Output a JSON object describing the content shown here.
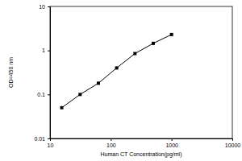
{
  "chart_data": {
    "type": "line",
    "x_label": "Human CT Concentration(pg/ml)",
    "y_label": "OD=450 nm",
    "x": [
      15.6,
      31.25,
      62.5,
      125,
      250,
      500,
      1000
    ],
    "values": [
      0.05,
      0.1,
      0.18,
      0.4,
      0.85,
      1.45,
      2.3
    ],
    "color": "#000000",
    "marker": "square",
    "line_style": "solid",
    "log": true,
    "grid": false,
    "xlim": [
      10,
      10000
    ],
    "xticks": [
      10,
      100,
      1000,
      10000
    ],
    "ylim": [
      0.01,
      10
    ],
    "yticks": [
      0.01,
      0.1,
      1,
      10
    ]
  }
}
